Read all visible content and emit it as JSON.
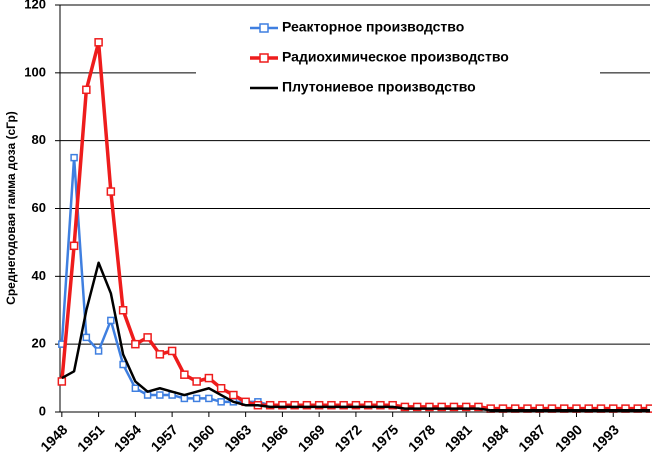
{
  "chart_data": {
    "type": "line",
    "y_label": "Среднегодовая гамма доза (сГр)",
    "x": [
      1948,
      1949,
      1950,
      1951,
      1952,
      1953,
      1954,
      1955,
      1956,
      1957,
      1958,
      1959,
      1960,
      1961,
      1962,
      1963,
      1964,
      1965,
      1966,
      1967,
      1968,
      1969,
      1970,
      1971,
      1972,
      1973,
      1974,
      1975,
      1976,
      1977,
      1978,
      1979,
      1980,
      1981,
      1982,
      1983,
      1984,
      1985,
      1986,
      1987,
      1988,
      1989,
      1990,
      1991,
      1992,
      1993,
      1994,
      1995,
      1996
    ],
    "xlim": [
      1947.85,
      1996
    ],
    "xticks": [
      1948,
      1951,
      1954,
      1957,
      1960,
      1963,
      1966,
      1969,
      1972,
      1975,
      1978,
      1981,
      1984,
      1987,
      1990,
      1993
    ],
    "ylim": [
      0,
      120
    ],
    "yticks": [
      0,
      20,
      40,
      60,
      80,
      100,
      120
    ],
    "grid": true,
    "legend": "top",
    "series": [
      {
        "name": "Реакторное производство",
        "color": "#3f7fe0",
        "marker": "square",
        "values": [
          20,
          75,
          22,
          18,
          27,
          14,
          7,
          5,
          5,
          5,
          4,
          4,
          4,
          3,
          3,
          3,
          3,
          2,
          2,
          2,
          2,
          2,
          2,
          2,
          2,
          2,
          2,
          2,
          1.5,
          1.5,
          1.5,
          1.5,
          1.5,
          1.5,
          1.5,
          1,
          1,
          1,
          1,
          1,
          1,
          1,
          1,
          1,
          1,
          1,
          1,
          1,
          1
        ]
      },
      {
        "name": "Радиохимическое производство",
        "color": "#ee1c1c",
        "marker": "square",
        "values": [
          9,
          49,
          95,
          109,
          65,
          30,
          20,
          22,
          17,
          18,
          11,
          9,
          10,
          7,
          5,
          3,
          2,
          2,
          2,
          2,
          2,
          2,
          2,
          2,
          2,
          2,
          2,
          2,
          1.5,
          1.5,
          1.5,
          1.5,
          1.5,
          1.5,
          1.5,
          1,
          1,
          1,
          1,
          1,
          1,
          1,
          1,
          1,
          1,
          1,
          1,
          1,
          1
        ]
      },
      {
        "name": "Плутониевое производство",
        "color": "#000000",
        "marker": "none",
        "values": [
          10,
          12,
          30,
          44,
          35,
          17,
          9,
          6,
          7,
          6,
          5,
          6,
          7,
          5,
          3,
          2,
          2,
          1.5,
          1.5,
          1.5,
          1.5,
          1.5,
          1.5,
          1.5,
          1.5,
          1.5,
          1.5,
          1.5,
          1,
          1,
          1,
          1,
          1,
          1,
          1,
          0.5,
          0.5,
          0.5,
          0.5,
          0.5,
          0.5,
          0.5,
          0.5,
          0.5,
          0.5,
          0.5,
          0.5,
          0.5,
          0.5
        ]
      }
    ]
  }
}
